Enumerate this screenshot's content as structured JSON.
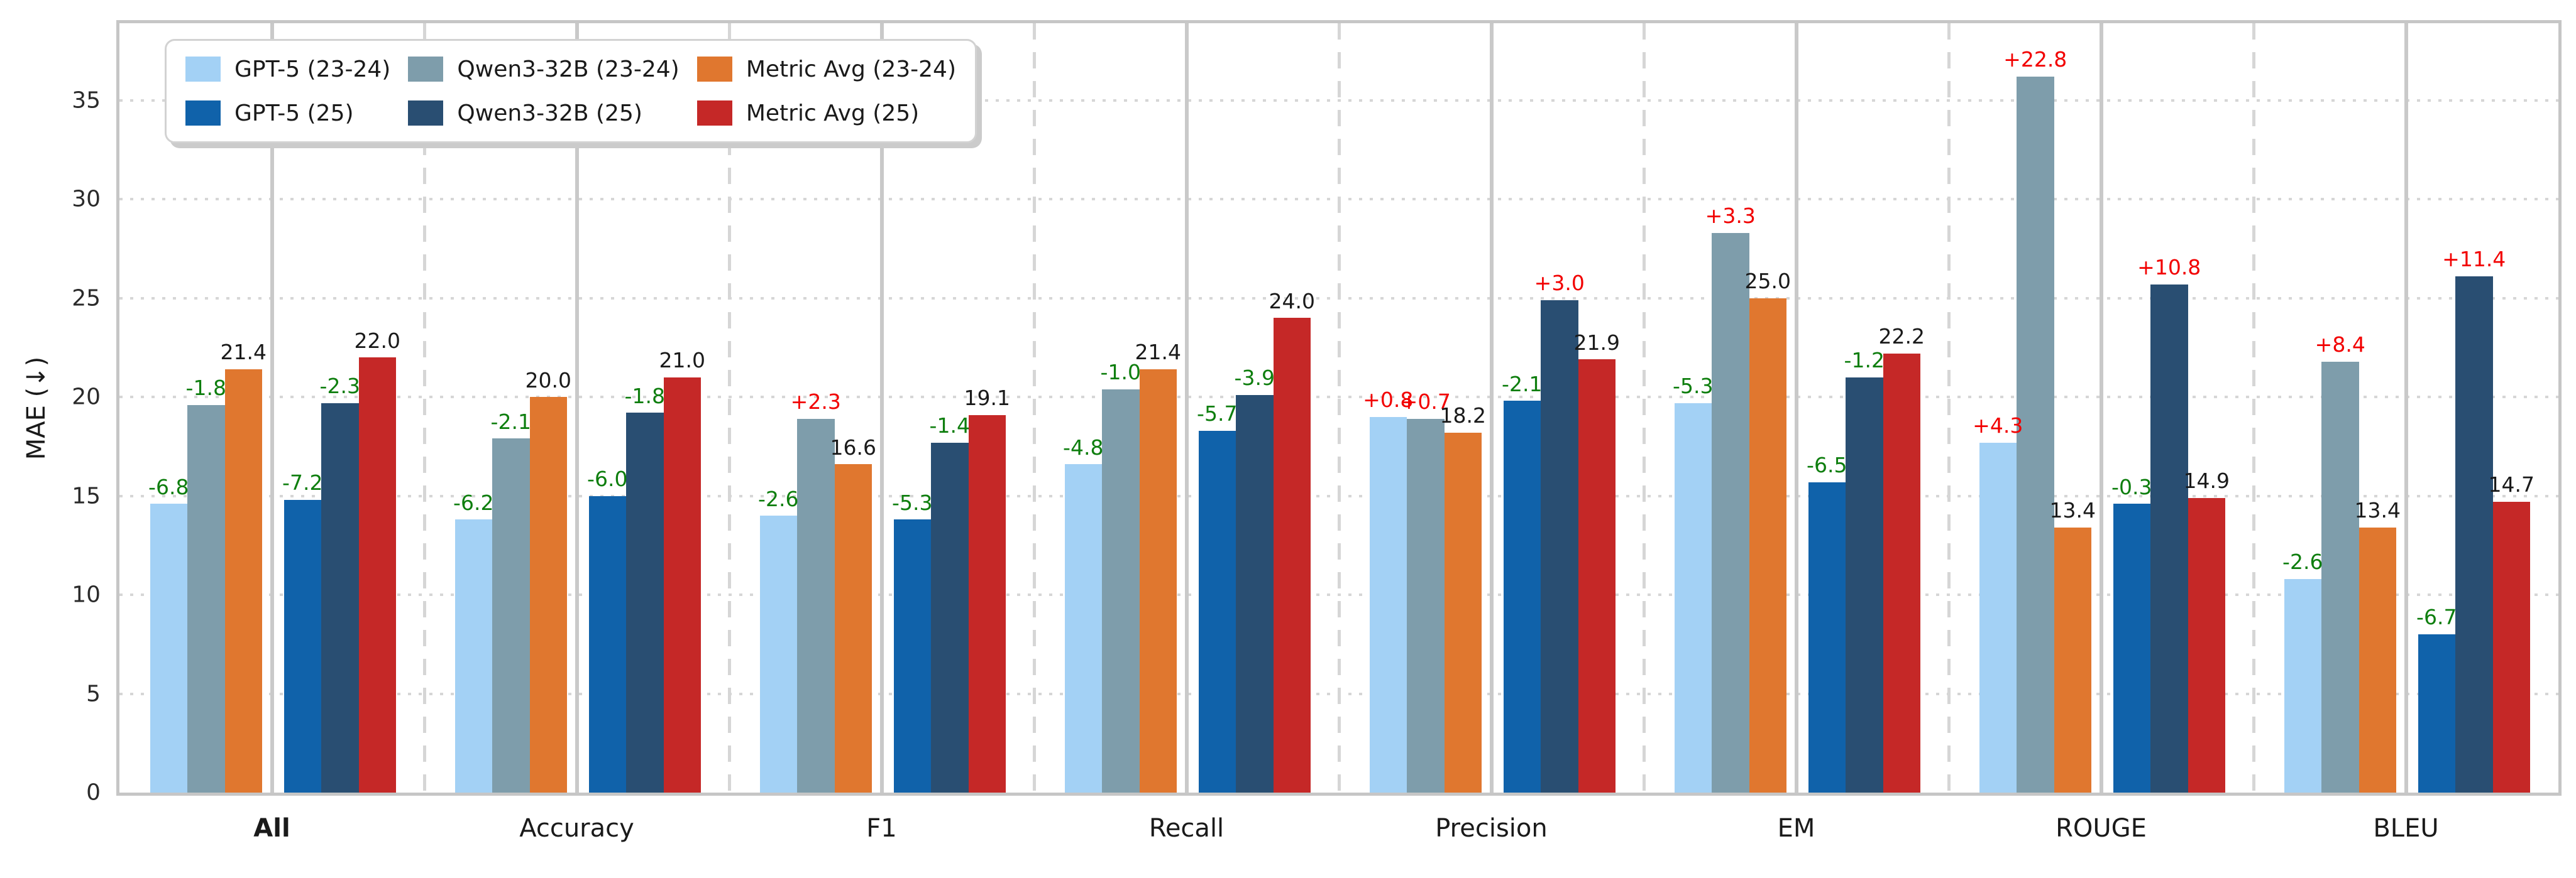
{
  "figure": {
    "background": "#ffffff",
    "ylabel": "MAE (↓)",
    "yticks": [
      0,
      5,
      10,
      15,
      20,
      25,
      30,
      35
    ],
    "ymax_value": 38.9,
    "bold_category": "All"
  },
  "legend": {
    "entries": [
      {
        "label": "GPT-5 (23-24)",
        "color": "#a3d1f5"
      },
      {
        "label": "GPT-5 (25)",
        "color": "#1062aa"
      },
      {
        "label": "Qwen3-32B (23-24)",
        "color": "#7e9dab"
      },
      {
        "label": "Qwen3-32B (25)",
        "color": "#294e72"
      },
      {
        "label": "Metric Avg (23-24)",
        "color": "#e0772f"
      },
      {
        "label": "Metric Avg (25)",
        "color": "#c52827"
      }
    ]
  },
  "chart_data": {
    "type": "bar",
    "title": "",
    "xlabel": "",
    "ylabel": "MAE (↓)",
    "ylim": [
      0,
      38.9
    ],
    "grid": {
      "horizontal": "dotted",
      "category_boundary": "dashed",
      "group_center": "solid"
    },
    "legend_position": "upper left",
    "categories": [
      "All",
      "Accuracy",
      "F1",
      "Recall",
      "Precision",
      "EM",
      "ROUGE",
      "BLEU"
    ],
    "series": [
      {
        "name": "GPT-5 (23-24)",
        "color": "#a3d1f5",
        "values": [
          14.6,
          13.8,
          14.0,
          16.6,
          19.0,
          19.7,
          17.7,
          10.8
        ],
        "bar_labels": [
          "-6.8",
          "-6.2",
          "-2.6",
          "-4.8",
          "+0.8",
          "-5.3",
          "+4.3",
          "-2.6"
        ]
      },
      {
        "name": "Qwen3-32B (23-24)",
        "color": "#7e9dab",
        "values": [
          19.6,
          17.9,
          18.9,
          20.4,
          18.9,
          28.3,
          36.2,
          21.8
        ],
        "bar_labels": [
          "-1.8",
          "-2.1",
          "+2.3",
          "-1.0",
          "+0.7",
          "+3.3",
          "+22.8",
          "+8.4"
        ]
      },
      {
        "name": "Metric Avg (23-24)",
        "color": "#e0772f",
        "values": [
          21.4,
          20.0,
          16.6,
          21.4,
          18.2,
          25.0,
          13.4,
          13.4
        ],
        "bar_labels": [
          "21.4",
          "20.0",
          "16.6",
          "21.4",
          "18.2",
          "25.0",
          "13.4",
          "13.4"
        ]
      },
      {
        "name": "GPT-5 (25)",
        "color": "#1062aa",
        "values": [
          14.8,
          15.0,
          13.8,
          18.3,
          19.8,
          15.7,
          14.6,
          8.0
        ],
        "bar_labels": [
          "-7.2",
          "-6.0",
          "-5.3",
          "-5.7",
          "-2.1",
          "-6.5",
          "-0.3",
          "-6.7"
        ]
      },
      {
        "name": "Qwen3-32B (25)",
        "color": "#294e72",
        "values": [
          19.7,
          19.2,
          17.7,
          20.1,
          24.9,
          21.0,
          25.7,
          26.1
        ],
        "bar_labels": [
          "-2.3",
          "-1.8",
          "-1.4",
          "-3.9",
          "+3.0",
          "-1.2",
          "+10.8",
          "+11.4"
        ]
      },
      {
        "name": "Metric Avg (25)",
        "color": "#c52827",
        "values": [
          22.0,
          21.0,
          19.1,
          24.0,
          21.9,
          22.2,
          14.9,
          14.7
        ],
        "bar_labels": [
          "22.0",
          "21.0",
          "19.1",
          "24.0",
          "21.9",
          "22.2",
          "14.9",
          "14.7"
        ]
      }
    ],
    "label_colors": {
      "positive": "#f20000",
      "negative": "#0e7e0e",
      "neutral": "#1a1a1a"
    }
  }
}
